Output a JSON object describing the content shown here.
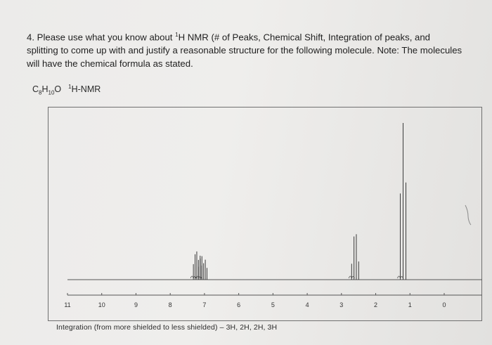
{
  "document": {
    "question": "4. Please use what you know about ¹H NMR (# of Peaks, Chemical Shift, Integration of peaks, and splitting to come up with and justify a reasonable structure for the following molecule. Note: The molecules will have the chemical formula as stated.",
    "question_prefix": "4. Please use what you know about ",
    "question_sup": "1",
    "question_rest": "H NMR (# of Peaks, Chemical Shift, Integration of peaks, and splitting to come up with and justify a reasonable structure for the following molecule. Note: The molecules will have the chemical formula as stated.",
    "formula": {
      "c": "C",
      "c_sub": "8",
      "h": "H",
      "h_sub": "10",
      "o": "O",
      "nmr_sup": "1",
      "nmr_label": "H-NMR"
    },
    "integration_note": "Integration (from more shielded to less shielded) – 3H, 2H, 2H, 3H"
  },
  "chart_data": {
    "type": "line",
    "xlim": [
      11,
      0
    ],
    "x_ticks": [
      "11",
      "10",
      "9",
      "8",
      "7",
      "6",
      "5",
      "4",
      "3",
      "2",
      "1",
      "0"
    ],
    "peaks": [
      {
        "center": 7.2,
        "height": 0.18,
        "multiplicity": "multiplet"
      },
      {
        "center": 7.05,
        "height": 0.15,
        "multiplicity": "multiplet"
      },
      {
        "center": 2.6,
        "height": 0.29,
        "multiplicity": "quartet"
      },
      {
        "center": 1.2,
        "height": 1.0,
        "multiplicity": "triplet"
      }
    ]
  }
}
